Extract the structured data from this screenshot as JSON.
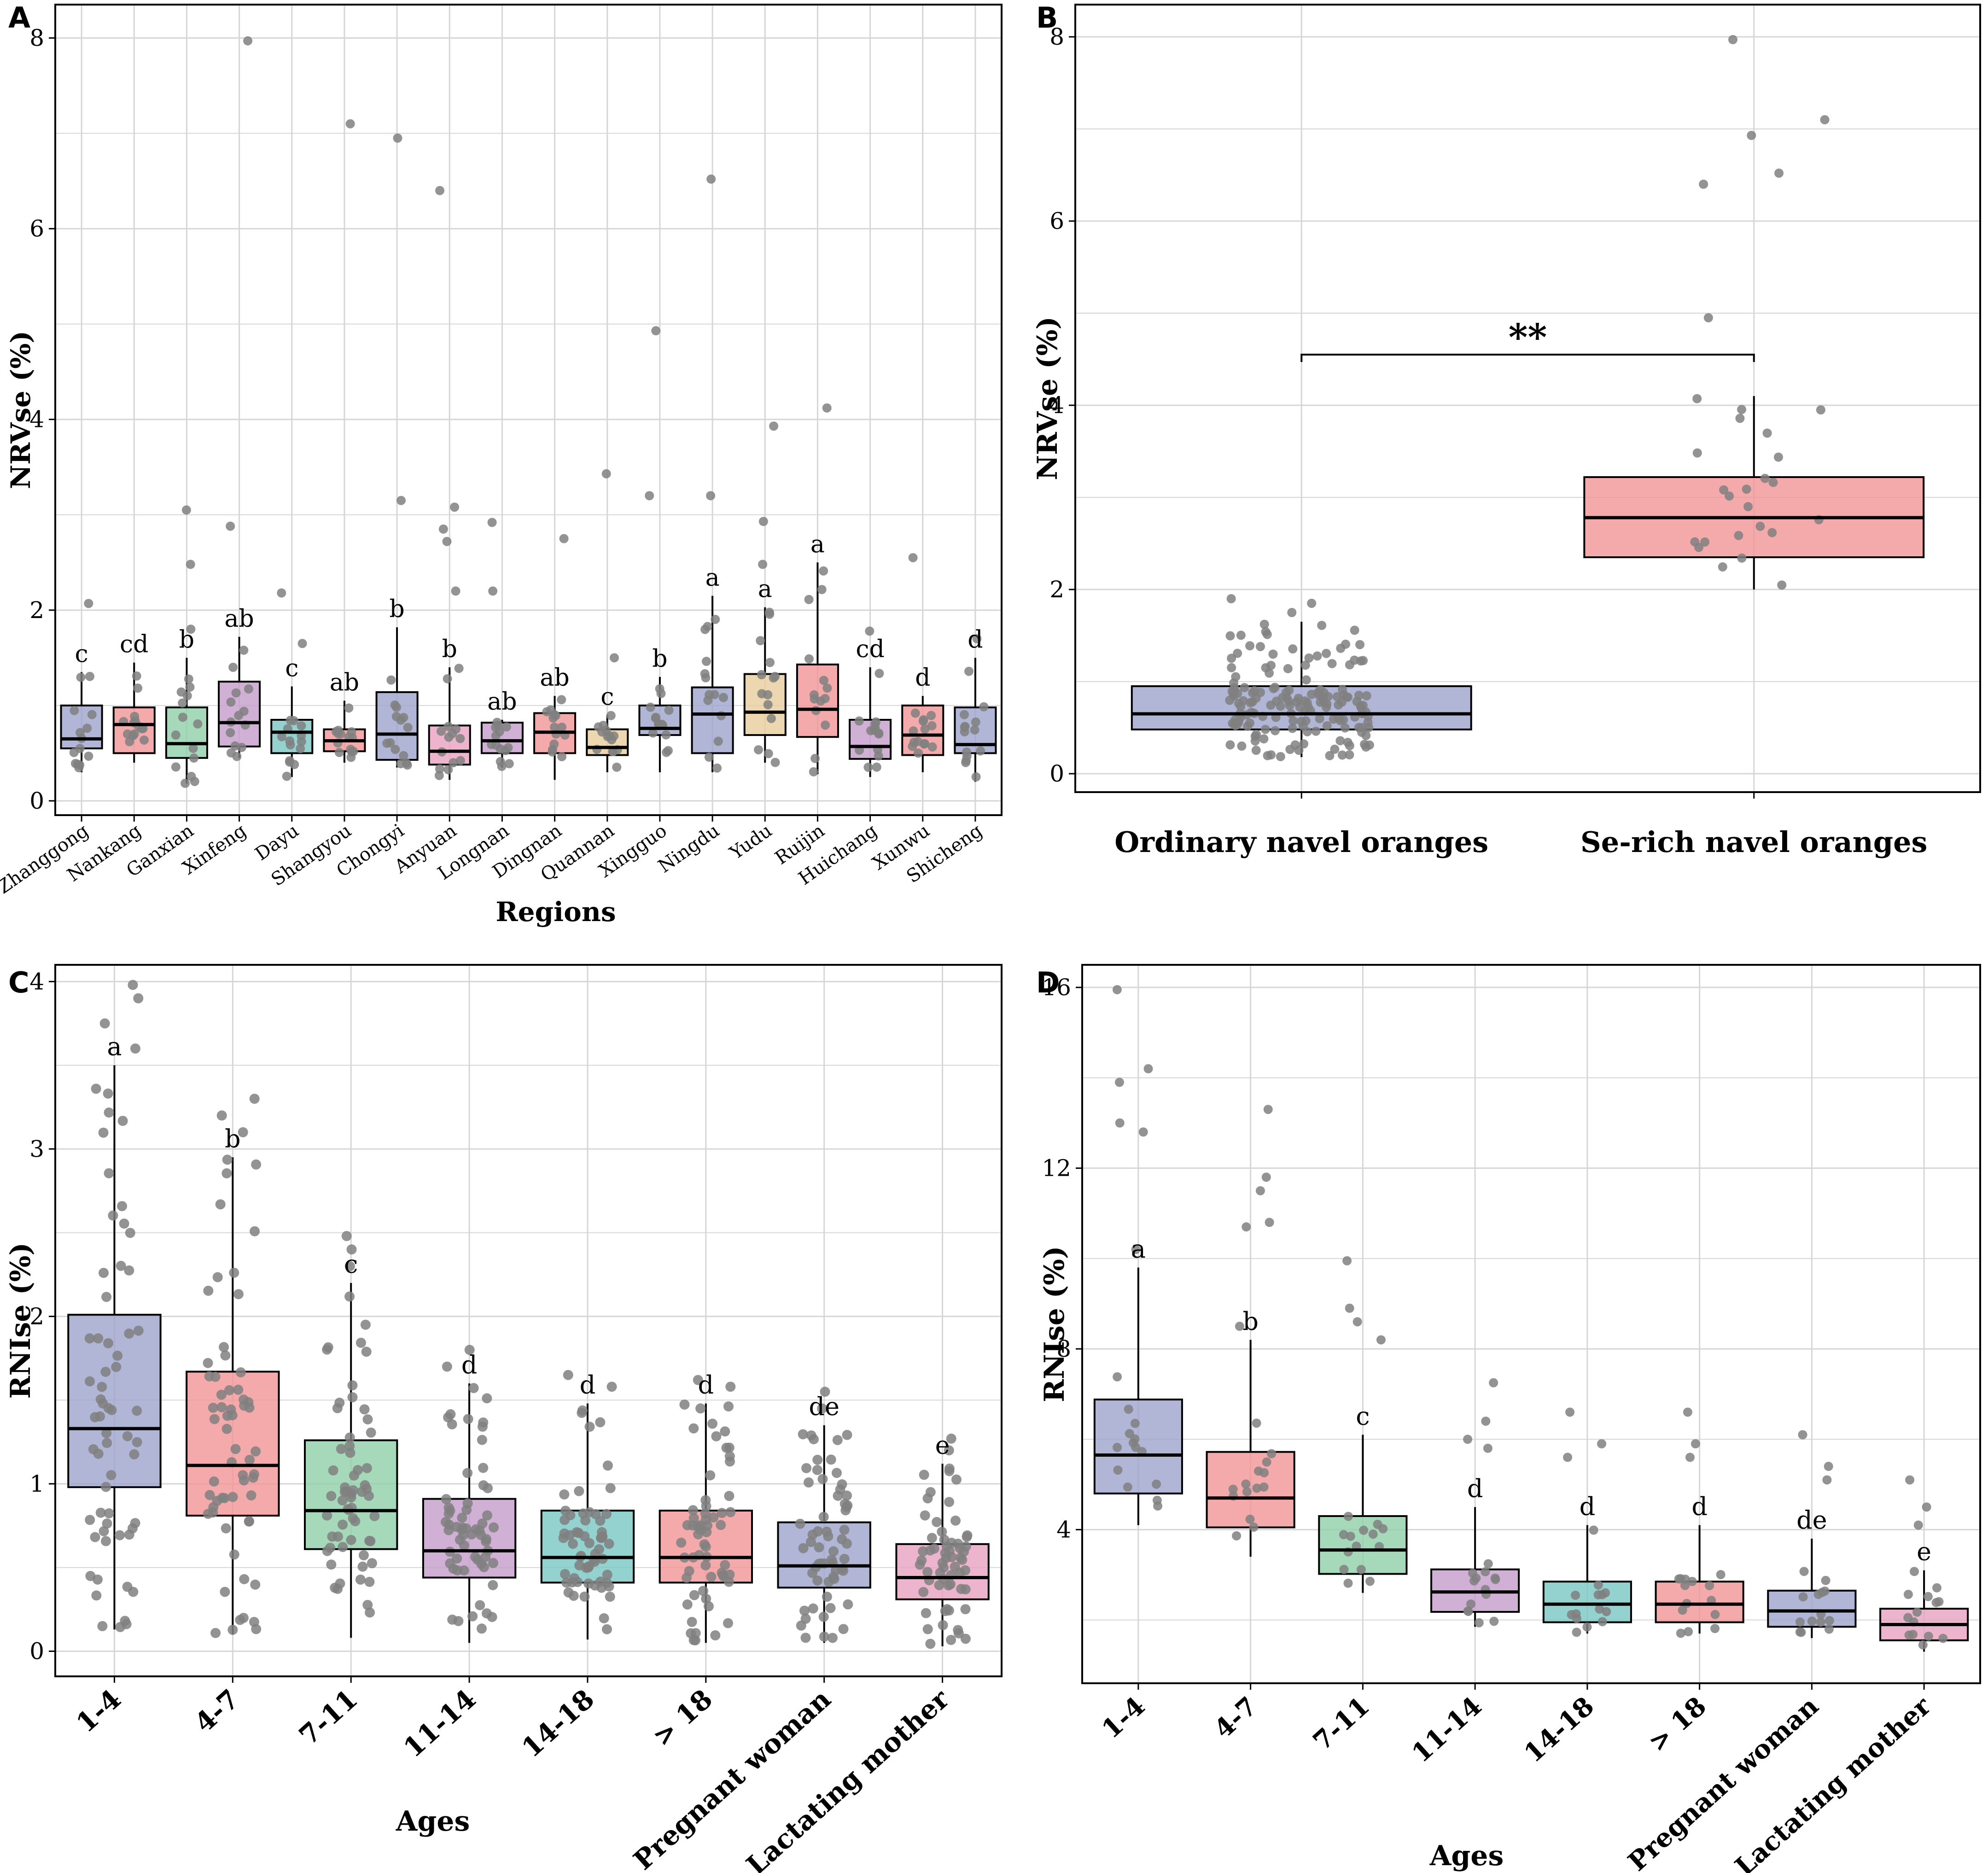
{
  "colors": {
    "box_blue": "#9ea3cc",
    "box_red": "#f19595",
    "box_green": "#8fd0a8",
    "box_purple": "#c49ccb",
    "box_teal": "#79c7c3",
    "box_tan": "#e8cd9e",
    "box_pink": "#e8a1c0",
    "point": "#808080",
    "grid": "#d6d6d6"
  },
  "chart_data": [
    {
      "panel": "A",
      "type": "box",
      "xlabel": "Regions",
      "ylabel": "NRVse (%)",
      "ylim": [
        -0.15,
        8.35
      ],
      "yticks": [
        0,
        2,
        4,
        6,
        8
      ],
      "categories": [
        "Zhanggong",
        "Nankang",
        "Ganxian",
        "Xinfeng",
        "Dayu",
        "Shangyou",
        "Chongyi",
        "Anyuan",
        "Longnan",
        "Dingnan",
        "Quannan",
        "Xingguo",
        "Ningdu",
        "Yudu",
        "Ruijin",
        "Huichang",
        "Xunwu",
        "Shicheng"
      ],
      "letters": [
        "c",
        "cd",
        "b",
        "ab",
        "c",
        "ab",
        "b",
        "b",
        "ab",
        "ab",
        "c",
        "b",
        "a",
        "a",
        "a",
        "cd",
        "d",
        "d"
      ],
      "boxes": [
        {
          "q1": 0.55,
          "med": 0.65,
          "q3": 1.0,
          "wlo": 0.3,
          "whi": 1.35,
          "color": "box_blue",
          "out": [
            2.07
          ]
        },
        {
          "q1": 0.5,
          "med": 0.8,
          "q3": 0.98,
          "wlo": 0.4,
          "whi": 1.45,
          "color": "box_red",
          "out": []
        },
        {
          "q1": 0.45,
          "med": 0.6,
          "q3": 0.98,
          "wlo": 0.18,
          "whi": 1.5,
          "color": "box_green",
          "out": [
            1.8,
            2.48,
            3.05
          ]
        },
        {
          "q1": 0.57,
          "med": 0.82,
          "q3": 1.25,
          "wlo": 0.45,
          "whi": 1.72,
          "color": "box_purple",
          "out": [
            2.88,
            7.97
          ]
        },
        {
          "q1": 0.5,
          "med": 0.72,
          "q3": 0.85,
          "wlo": 0.25,
          "whi": 1.2,
          "color": "box_teal",
          "out": [
            1.65,
            2.18
          ]
        },
        {
          "q1": 0.52,
          "med": 0.63,
          "q3": 0.75,
          "wlo": 0.4,
          "whi": 1.05,
          "color": "box_red",
          "out": [
            7.1
          ]
        },
        {
          "q1": 0.43,
          "med": 0.7,
          "q3": 1.14,
          "wlo": 0.35,
          "whi": 1.82,
          "color": "box_blue",
          "out": [
            3.15,
            6.95
          ]
        },
        {
          "q1": 0.38,
          "med": 0.52,
          "q3": 0.79,
          "wlo": 0.22,
          "whi": 1.4,
          "color": "box_pink",
          "out": [
            2.2,
            2.72,
            2.85,
            3.08,
            6.4
          ]
        },
        {
          "q1": 0.5,
          "med": 0.63,
          "q3": 0.82,
          "wlo": 0.35,
          "whi": 0.85,
          "color": "box_purple",
          "out": [
            2.2,
            2.92
          ]
        },
        {
          "q1": 0.5,
          "med": 0.72,
          "q3": 0.92,
          "wlo": 0.22,
          "whi": 1.1,
          "color": "box_red",
          "out": [
            2.75
          ]
        },
        {
          "q1": 0.48,
          "med": 0.56,
          "q3": 0.75,
          "wlo": 0.3,
          "whi": 0.9,
          "color": "box_tan",
          "out": [
            1.5,
            3.43
          ]
        },
        {
          "q1": 0.69,
          "med": 0.76,
          "q3": 1.0,
          "wlo": 0.3,
          "whi": 1.3,
          "color": "box_blue",
          "out": [
            3.2,
            4.93
          ]
        },
        {
          "q1": 0.5,
          "med": 0.91,
          "q3": 1.19,
          "wlo": 0.3,
          "whi": 2.15,
          "color": "box_blue",
          "out": [
            3.2,
            6.52
          ]
        },
        {
          "q1": 0.69,
          "med": 0.93,
          "q3": 1.33,
          "wlo": 0.4,
          "whi": 2.03,
          "color": "box_tan",
          "out": [
            2.48,
            2.93,
            3.93
          ]
        },
        {
          "q1": 0.67,
          "med": 0.96,
          "q3": 1.43,
          "wlo": 0.28,
          "whi": 2.5,
          "color": "box_red",
          "out": [
            4.12
          ]
        },
        {
          "q1": 0.44,
          "med": 0.57,
          "q3": 0.85,
          "wlo": 0.25,
          "whi": 1.4,
          "color": "box_purple",
          "out": [
            1.78
          ]
        },
        {
          "q1": 0.48,
          "med": 0.69,
          "q3": 1.0,
          "wlo": 0.3,
          "whi": 1.1,
          "color": "box_red",
          "out": [
            2.55
          ]
        },
        {
          "q1": 0.5,
          "med": 0.59,
          "q3": 0.98,
          "wlo": 0.2,
          "whi": 1.5,
          "color": "box_blue",
          "out": [
            1.7
          ]
        }
      ]
    },
    {
      "panel": "B",
      "type": "box",
      "xlabel": "",
      "ylabel": "NRVse (%)",
      "ylim": [
        -0.2,
        8.35
      ],
      "yticks": [
        0,
        2,
        4,
        6,
        8
      ],
      "categories": [
        "Ordinary navel oranges",
        "Se-rich navel oranges"
      ],
      "significance": "**",
      "boxes": [
        {
          "q1": 0.48,
          "med": 0.65,
          "q3": 0.95,
          "wlo": 0.18,
          "whi": 1.65,
          "color": "box_blue",
          "out": [
            1.75,
            1.85,
            1.9
          ]
        },
        {
          "q1": 2.35,
          "med": 2.78,
          "q3": 3.22,
          "wlo": 2.0,
          "whi": 4.1,
          "color": "box_red",
          "out": [
            3.95,
            4.95,
            6.4,
            6.52,
            6.93,
            7.1,
            7.97
          ]
        }
      ]
    },
    {
      "panel": "C",
      "type": "box",
      "xlabel": "Ages",
      "ylabel": "RNIse (%)",
      "ylim": [
        -0.15,
        4.1
      ],
      "yticks": [
        0,
        1,
        2,
        3,
        4
      ],
      "categories": [
        "1-4",
        "4-7",
        "7-11",
        "11-14",
        "14-18",
        "> 18",
        "Pregnant woman",
        "Lactating mother"
      ],
      "letters": [
        "a",
        "b",
        "c",
        "d",
        "d",
        "d",
        "de",
        "e"
      ],
      "boxes": [
        {
          "q1": 0.98,
          "med": 1.33,
          "q3": 2.01,
          "wlo": 0.13,
          "whi": 3.5,
          "color": "box_blue",
          "out": [
            3.6,
            3.75,
            3.9,
            3.98
          ]
        },
        {
          "q1": 0.81,
          "med": 1.11,
          "q3": 1.67,
          "wlo": 0.1,
          "whi": 2.95,
          "color": "box_red",
          "out": [
            3.1,
            3.2,
            3.3
          ]
        },
        {
          "q1": 0.61,
          "med": 0.84,
          "q3": 1.26,
          "wlo": 0.08,
          "whi": 2.2,
          "color": "box_green",
          "out": [
            2.3,
            2.4,
            2.48
          ]
        },
        {
          "q1": 0.44,
          "med": 0.6,
          "q3": 0.91,
          "wlo": 0.05,
          "whi": 1.6,
          "color": "box_purple",
          "out": [
            1.7,
            1.8
          ]
        },
        {
          "q1": 0.41,
          "med": 0.56,
          "q3": 0.84,
          "wlo": 0.07,
          "whi": 1.48,
          "color": "box_teal",
          "out": [
            1.58,
            1.65
          ]
        },
        {
          "q1": 0.41,
          "med": 0.56,
          "q3": 0.84,
          "wlo": 0.05,
          "whi": 1.48,
          "color": "box_red",
          "out": [
            1.58,
            1.62
          ]
        },
        {
          "q1": 0.38,
          "med": 0.51,
          "q3": 0.77,
          "wlo": 0.05,
          "whi": 1.35,
          "color": "box_blue",
          "out": [
            1.45,
            1.55
          ]
        },
        {
          "q1": 0.31,
          "med": 0.44,
          "q3": 0.64,
          "wlo": 0.03,
          "whi": 1.12,
          "color": "box_pink",
          "out": [
            1.2,
            1.27
          ]
        }
      ]
    },
    {
      "panel": "D",
      "type": "box",
      "xlabel": "Ages",
      "ylabel": "RNIse (%)",
      "ylim": [
        0.6,
        16.5
      ],
      "yticks": [
        4,
        8,
        12,
        16
      ],
      "categories": [
        "1-4",
        "4-7",
        "7-11",
        "11-14",
        "14-18",
        "> 18",
        "Pregnant woman",
        "Lactating mother"
      ],
      "letters": [
        "a",
        "b",
        "c",
        "d",
        "d",
        "d",
        "de",
        "e"
      ],
      "boxes": [
        {
          "q1": 4.8,
          "med": 5.65,
          "q3": 6.88,
          "wlo": 4.1,
          "whi": 9.8,
          "color": "box_blue",
          "out": [
            10.2,
            12.8,
            13.0,
            13.9,
            14.2,
            15.95
          ]
        },
        {
          "q1": 4.05,
          "med": 4.7,
          "q3": 5.72,
          "wlo": 3.4,
          "whi": 8.2,
          "color": "box_red",
          "out": [
            8.5,
            10.7,
            10.8,
            11.5,
            11.8,
            13.3
          ]
        },
        {
          "q1": 3.02,
          "med": 3.55,
          "q3": 4.3,
          "wlo": 2.6,
          "whi": 6.1,
          "color": "box_green",
          "out": [
            8.2,
            8.6,
            8.9,
            9.95
          ]
        },
        {
          "q1": 2.18,
          "med": 2.62,
          "q3": 3.12,
          "wlo": 1.85,
          "whi": 4.5,
          "color": "box_purple",
          "out": [
            5.8,
            6.0,
            6.4,
            7.25
          ]
        },
        {
          "q1": 1.95,
          "med": 2.35,
          "q3": 2.85,
          "wlo": 1.7,
          "whi": 4.1,
          "color": "box_teal",
          "out": [
            5.6,
            5.9,
            6.6
          ]
        },
        {
          "q1": 1.95,
          "med": 2.35,
          "q3": 2.85,
          "wlo": 1.7,
          "whi": 4.1,
          "color": "box_red",
          "out": [
            5.6,
            5.9,
            6.6
          ]
        },
        {
          "q1": 1.85,
          "med": 2.2,
          "q3": 2.65,
          "wlo": 1.6,
          "whi": 3.8,
          "color": "box_blue",
          "out": [
            5.1,
            5.4,
            6.1
          ]
        },
        {
          "q1": 1.55,
          "med": 1.9,
          "q3": 2.25,
          "wlo": 1.3,
          "whi": 3.1,
          "color": "box_pink",
          "out": [
            4.1,
            4.5,
            5.1
          ]
        }
      ]
    }
  ]
}
